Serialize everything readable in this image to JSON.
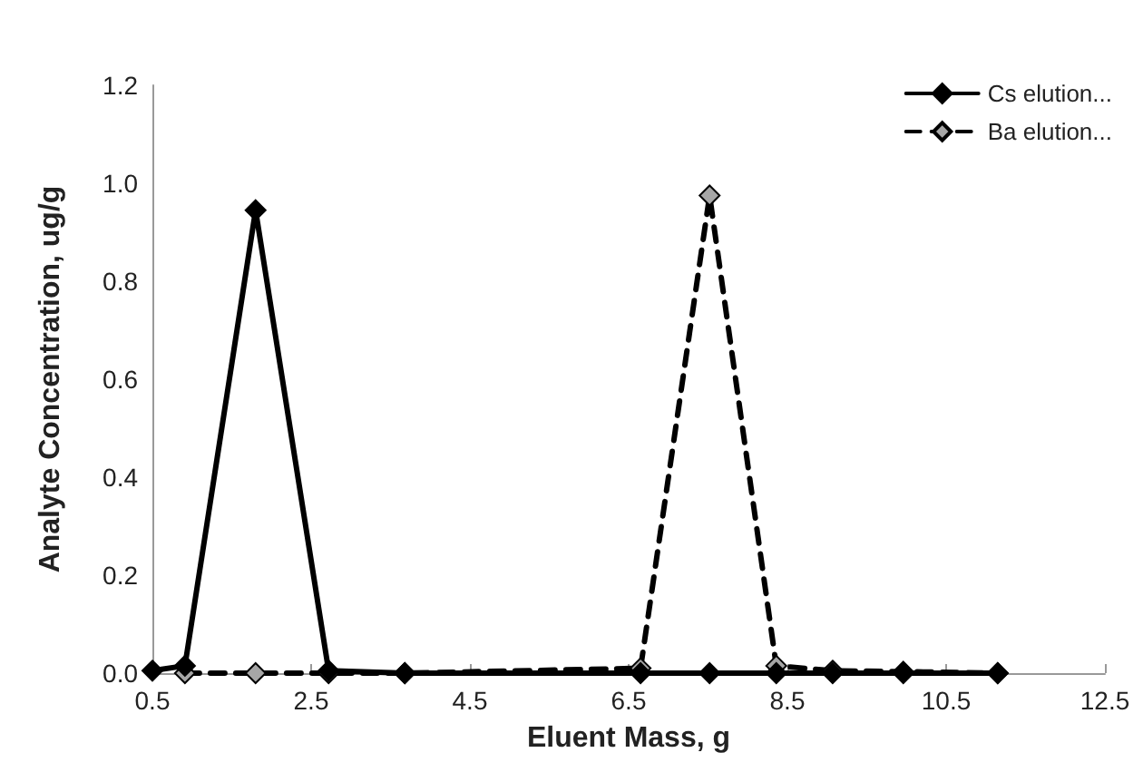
{
  "chart_data": {
    "type": "line",
    "xlabel": "Eluent Mass, g",
    "ylabel": "Analyte Concentration, ug/g",
    "xlim": [
      0.5,
      12.5
    ],
    "xticks": [
      0.5,
      2.5,
      4.5,
      6.5,
      8.5,
      10.5,
      12.5
    ],
    "ylim": [
      0,
      1.2
    ],
    "yticks": [
      {
        "value": 0,
        "label": "0.0"
      },
      0.2,
      0.4,
      0.6,
      0.8,
      {
        "value": 1,
        "label": "1.0"
      },
      1.2
    ],
    "grid": false,
    "legend": "top right",
    "marker": "diamond",
    "series": [
      {
        "name": "Cs elution...",
        "color": "#000000",
        "line_style": "solid",
        "x": [
          0.5,
          0.91,
          1.8,
          2.72,
          3.68,
          6.65,
          7.52,
          8.36,
          9.07,
          9.96,
          11.15
        ],
        "values": [
          0.005,
          0.015,
          0.945,
          0.005,
          0.0,
          0.0,
          0.0,
          0.0,
          0.0,
          0.0,
          0.0
        ]
      },
      {
        "name": "Ba elution...",
        "color": "#a6a6a6",
        "line_style": "dashed",
        "x": [
          0.91,
          1.8,
          2.72,
          3.68,
          6.65,
          7.52,
          8.36,
          9.07,
          9.96,
          11.15
        ],
        "values": [
          0.0,
          0.0,
          0.0,
          0.0,
          0.01,
          0.975,
          0.015,
          0.005,
          0.003,
          0.0
        ]
      }
    ]
  }
}
